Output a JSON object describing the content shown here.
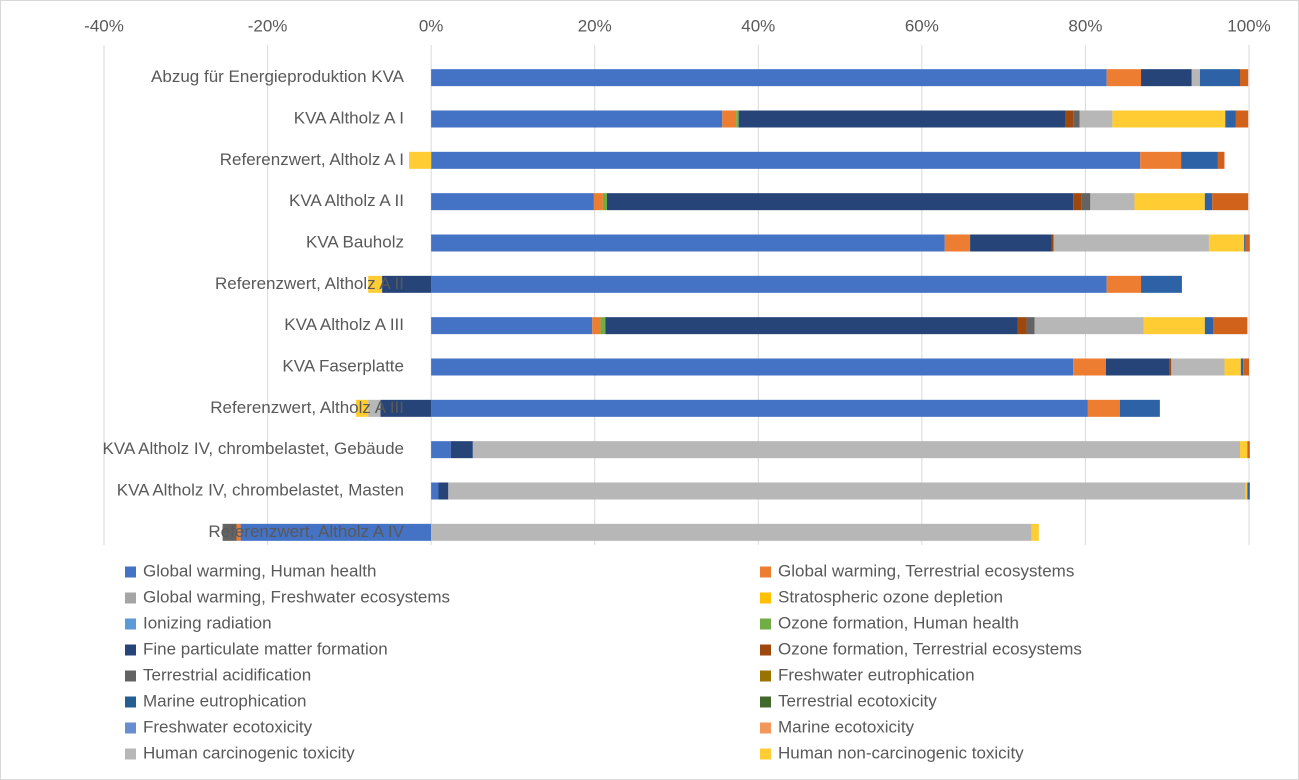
{
  "chart_data": {
    "type": "stacked_bar_horizontal",
    "categories": [
      "Abzug für Energieproduktion KVA",
      "KVA Altholz A I",
      "Referenzwert, Altholz A I",
      "KVA Altholz A II",
      "KVA Bauholz",
      "Referenzwert, Altholz A II",
      "KVA Altholz A III",
      "KVA Faserplatte",
      "Referenzwert, Altholz A III",
      "KVA Altholz IV, chrombelastet, Gebäude",
      "KVA Altholz IV, chrombelastet, Masten",
      "Referenzwert, Altholz A IV"
    ],
    "series": [
      {
        "name": "Global warming, Human health",
        "color": "#4472c4",
        "values": [
          82.6,
          35.6,
          86.7,
          19.9,
          62.8,
          82.6,
          19.7,
          78.5,
          80.3,
          2.4,
          0.9,
          -23.3
        ]
      },
      {
        "name": "Global warming, Terrestrial ecosystems",
        "color": "#ed7d31",
        "values": [
          4.2,
          1.7,
          5.0,
          1.1,
          3.1,
          4.2,
          1.0,
          4.0,
          3.9,
          0,
          0,
          -0.5
        ]
      },
      {
        "name": "Global warming, Freshwater ecosystems",
        "color": "#a5a5a5",
        "values": [
          0,
          0,
          0,
          0,
          0,
          0,
          0,
          0,
          0,
          0,
          0,
          0
        ]
      },
      {
        "name": "Stratospheric ozone depletion",
        "color": "#ffc000",
        "values": [
          0,
          0,
          0,
          0,
          0,
          0,
          0,
          0,
          0,
          0,
          0,
          0
        ]
      },
      {
        "name": "Ionizing radiation",
        "color": "#5b9bd5",
        "values": [
          0,
          0,
          0,
          0,
          0,
          0,
          0,
          0,
          0,
          0,
          0,
          0
        ]
      },
      {
        "name": "Ozone formation, Human health",
        "color": "#70ad47",
        "values": [
          0,
          0.3,
          0,
          0.5,
          0,
          0,
          0.6,
          0,
          0,
          0,
          0,
          0
        ]
      },
      {
        "name": "Fine particulate matter formation",
        "color": "#264478",
        "values": [
          6.2,
          40.0,
          0,
          57.0,
          10.0,
          -6.0,
          50.4,
          7.8,
          -6.2,
          2.7,
          1.2,
          0
        ]
      },
      {
        "name": "Ozone formation, Terrestrial ecosystems",
        "color": "#9e480e",
        "values": [
          0,
          0.9,
          0,
          1.0,
          0.2,
          0,
          1.1,
          0.2,
          0,
          0,
          0,
          0
        ]
      },
      {
        "name": "Terrestrial acidification",
        "color": "#636363",
        "values": [
          0,
          0.8,
          0,
          1.1,
          0,
          0,
          1.0,
          0,
          0,
          0,
          0,
          -1.7
        ]
      },
      {
        "name": "Freshwater eutrophication",
        "color": "#997300",
        "values": [
          0,
          0,
          0,
          0,
          0,
          0,
          0,
          0,
          0,
          0,
          0,
          0
        ]
      },
      {
        "name": "Marine eutrophication",
        "color": "#255e91",
        "values": [
          0,
          0,
          0,
          0,
          0,
          0,
          0,
          0,
          0,
          0,
          0,
          0
        ]
      },
      {
        "name": "Terrestrial ecotoxicity",
        "color": "#43682b",
        "values": [
          0,
          0,
          0,
          0,
          0,
          0,
          0,
          0,
          0,
          0,
          0,
          0
        ]
      },
      {
        "name": "Freshwater ecotoxicity",
        "color": "#698ed0",
        "values": [
          0,
          0,
          0,
          0,
          0,
          0,
          0,
          0,
          0,
          0,
          0,
          0
        ]
      },
      {
        "name": "Marine ecotoxicity",
        "color": "#f1975a",
        "values": [
          0,
          0,
          0,
          0,
          0,
          0,
          0,
          0,
          0,
          0,
          0,
          0
        ]
      },
      {
        "name": "Human carcinogenic toxicity",
        "color": "#b7b7b7",
        "values": [
          1.0,
          4.0,
          0,
          5.4,
          19.0,
          0,
          13.3,
          6.5,
          -1.5,
          93.8,
          97.5,
          73.4
        ]
      },
      {
        "name": "Human non-carcinogenic toxicity",
        "color": "#ffcd33",
        "values": [
          0,
          13.8,
          -2.7,
          8.6,
          4.3,
          -1.7,
          7.5,
          2.0,
          -1.5,
          0.9,
          0.2,
          0.9
        ]
      },
      {
        "color": "#2e62a6",
        "values": [
          4.9,
          1.3,
          4.5,
          0.9,
          0.2,
          5.0,
          1.0,
          0.3,
          4.9,
          0,
          0.3,
          0
        ]
      },
      {
        "color": "#d0621c",
        "values": [
          1.0,
          1.5,
          0.8,
          4.4,
          0.5,
          0,
          4.2,
          0.7,
          0,
          0.3,
          0,
          0
        ]
      }
    ],
    "xlim": [
      -40,
      100
    ],
    "xticks": [
      {
        "value": -40,
        "label": "-40%"
      },
      {
        "value": -20,
        "label": "-20%"
      },
      {
        "value": 0,
        "label": "0%"
      },
      {
        "value": 20,
        "label": "20%"
      },
      {
        "value": 40,
        "label": "40%"
      },
      {
        "value": 60,
        "label": "60%"
      },
      {
        "value": 80,
        "label": "80%"
      },
      {
        "value": 100,
        "label": "100%"
      }
    ],
    "grid": true,
    "legend": "bottom"
  }
}
